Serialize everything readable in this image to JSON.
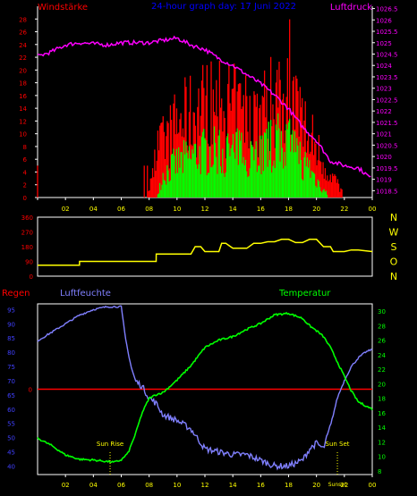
{
  "header": {
    "left_label": "Windstärke",
    "title": "24-hour graph day: 17 Juni 2022",
    "right_label": "Luftdruck"
  },
  "middle": {
    "compass": [
      "N",
      "W",
      "S",
      "O",
      "N"
    ]
  },
  "bottom": {
    "label_rain": "Regen",
    "label_humidity": "Luftfeuchte",
    "label_temperature": "Temperatur",
    "sun_rise": "Sun Rise",
    "sun_set": "Sun Set",
    "sunset_marker": "Sunset"
  },
  "colors": {
    "wind_avg": "#00ff00",
    "wind_gust": "#ff0000",
    "pressure": "#ff00ff",
    "direction": "#ffff00",
    "humidity": "#8080ff",
    "temperature": "#00ff00",
    "rain": "#ff0000",
    "axis_left": "#ff0000",
    "axis_right": "#ff00ff",
    "axis_hours": "#ffff00",
    "title": "#0000ff",
    "bottom_axis_left": "#4040ff",
    "compass": "#ffff00"
  },
  "chart_data": [
    {
      "type": "bar+line",
      "title": "24-hour graph day: 17 Juni 2022",
      "x_tick_labels": [
        "02",
        "04",
        "06",
        "08",
        "10",
        "12",
        "14",
        "16",
        "18",
        "20",
        "22",
        "00"
      ],
      "y_left_label": "Windstärke",
      "y_left_range": [
        0,
        30
      ],
      "y_left_ticks": [
        0,
        2,
        4,
        6,
        8,
        10,
        12,
        14,
        16,
        18,
        20,
        22,
        24,
        26,
        28
      ],
      "y_right_label": "Luftdruck",
      "y_right_range": [
        1018.2,
        1026.6
      ],
      "y_right_ticks": [
        "1018.5",
        "1019",
        "1019.5",
        "1020",
        "1020.5",
        "1021",
        "1021.5",
        "1022",
        "1022.5",
        "1023",
        "1023.5",
        "1024",
        "1024.5",
        "1025",
        "1025.5",
        "1026",
        "1026.5"
      ],
      "pressure_hours": [
        0,
        1,
        2,
        3,
        4,
        5,
        6,
        7,
        8,
        9,
        10,
        11,
        12,
        13,
        14,
        15,
        16,
        17,
        18,
        19,
        20,
        21,
        22,
        23,
        24
      ],
      "pressure_values": [
        1024.4,
        1024.6,
        1024.9,
        1025.0,
        1024.95,
        1024.9,
        1025.0,
        1025.0,
        1025.0,
        1025.1,
        1025.2,
        1024.9,
        1024.7,
        1024.3,
        1024.0,
        1023.6,
        1023.2,
        1022.7,
        1022.1,
        1021.3,
        1020.7,
        1019.8,
        1019.6,
        1019.5,
        1019.0
      ],
      "wind_gust_profile_hours": [
        0,
        7.9,
        8.6,
        10,
        12,
        14,
        16,
        17.5,
        18.5,
        19.5,
        20.5,
        22,
        24
      ],
      "wind_gust_profile_values": [
        0.3,
        0.5,
        9,
        14,
        18,
        17,
        16,
        21,
        17,
        12,
        7,
        0.5,
        0.3
      ],
      "wind_avg_profile_hours": [
        0,
        8.5,
        9,
        10,
        12,
        14,
        16,
        17.5,
        18.5,
        19.5,
        20.3,
        21,
        24
      ],
      "wind_avg_profile_values": [
        0,
        0,
        4,
        6,
        8,
        8,
        8,
        10,
        8,
        5,
        2,
        0,
        0
      ]
    },
    {
      "type": "line",
      "title": "",
      "x_tick_labels": [
        "02",
        "04",
        "06",
        "08",
        "10",
        "12",
        "14",
        "16",
        "18",
        "20",
        "22",
        "00"
      ],
      "y_left_ticks": [
        0,
        90,
        180,
        270,
        360
      ],
      "y_left_range": [
        0,
        360
      ],
      "direction_hours": [
        0,
        3,
        3.01,
        8.5,
        8.51,
        11,
        11.3,
        11.7,
        12,
        13,
        13.2,
        13.5,
        14,
        15,
        15.5,
        16,
        16.5,
        17,
        17.5,
        18,
        18.5,
        19,
        19.5,
        20,
        20.5,
        21,
        21.2,
        22,
        22.5,
        23,
        24
      ],
      "direction_values": [
        67,
        67,
        90,
        90,
        135,
        135,
        180,
        180,
        150,
        150,
        200,
        200,
        170,
        170,
        200,
        200,
        210,
        210,
        225,
        225,
        205,
        205,
        225,
        225,
        180,
        180,
        150,
        150,
        160,
        160,
        150
      ]
    },
    {
      "type": "line",
      "title": "",
      "x_tick_labels": [
        "02",
        "04",
        "06",
        "08",
        "10",
        "12",
        "14",
        "16",
        "18",
        "20",
        "22",
        "00"
      ],
      "y_left_label": "Luftfeuchte",
      "y_left_ticks": [
        40,
        45,
        50,
        55,
        60,
        65,
        70,
        75,
        80,
        85,
        90,
        95
      ],
      "y_left_range": [
        37,
        97
      ],
      "y_right_label": "Temperatur",
      "y_right_ticks": [
        8,
        10,
        12,
        14,
        16,
        18,
        20,
        22,
        24,
        26,
        28,
        30
      ],
      "y_right_range": [
        7.5,
        31
      ],
      "rain_label": "0",
      "rain_value": 0,
      "humidity_hours": [
        0,
        1,
        2,
        3,
        4,
        5,
        6,
        6.3,
        6.7,
        7,
        7.5,
        8,
        8.5,
        9,
        10,
        11,
        12,
        13,
        14,
        15,
        16,
        17,
        18,
        19,
        19.5,
        20,
        20.5,
        21,
        21.5,
        22,
        22.5,
        23,
        23.5,
        24
      ],
      "humidity_values": [
        84,
        87,
        90,
        93,
        95,
        96,
        96,
        85,
        75,
        70,
        68,
        64,
        62,
        58,
        56,
        53,
        46,
        45,
        44,
        44,
        42,
        40,
        40,
        42,
        46,
        48,
        46,
        54,
        64,
        70,
        75,
        78,
        80,
        81
      ],
      "temperature_hours": [
        0,
        1,
        2,
        3,
        4,
        5,
        5.5,
        6,
        6.5,
        7,
        7.5,
        8,
        8.5,
        9,
        10,
        11,
        12,
        13,
        14,
        15,
        16,
        17,
        18,
        19,
        19.5,
        20,
        20.5,
        21,
        21.5,
        22,
        22.5,
        23,
        24
      ],
      "temperature_values": [
        12.5,
        11.5,
        10.2,
        9.6,
        9.5,
        9.3,
        9.2,
        9.5,
        10.5,
        13,
        16,
        18,
        18.5,
        18.8,
        20.5,
        22.5,
        25,
        26,
        26.5,
        27.5,
        28.3,
        29.5,
        29.7,
        29,
        28,
        27.3,
        26.5,
        25,
        23,
        21,
        19,
        17.5,
        16.5
      ],
      "sun_rise_hour": 5.2,
      "sun_set_hour": 21.5
    }
  ]
}
